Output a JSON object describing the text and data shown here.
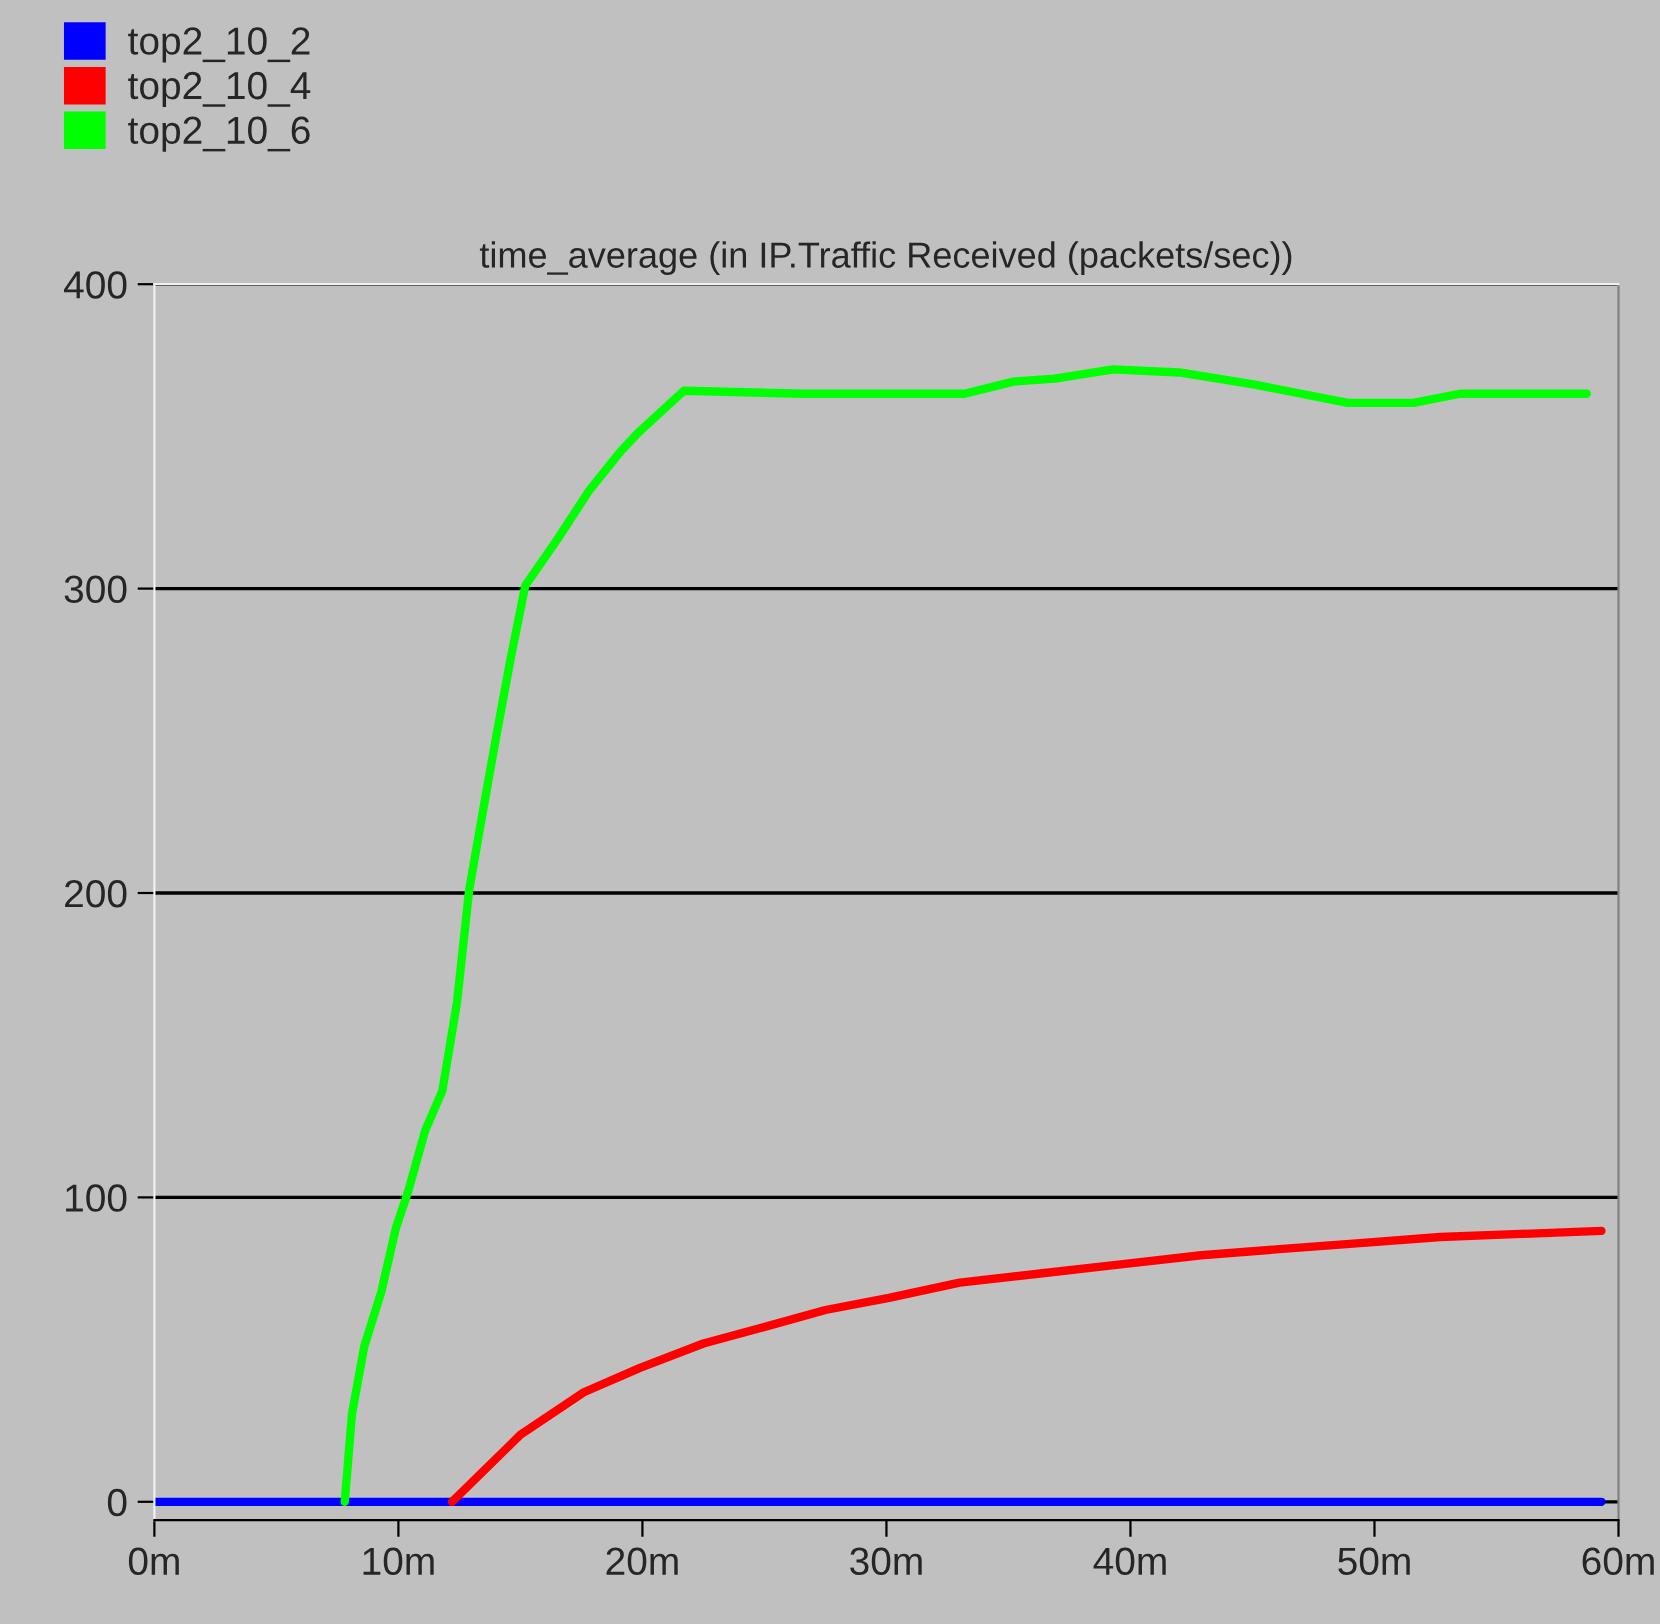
{
  "chart_data": {
    "type": "line",
    "title": "time_average (in IP.Traffic Received (packets/sec))",
    "xlim": [
      0,
      60
    ],
    "ylim": [
      -6,
      400
    ],
    "xticks": [
      {
        "value": 0,
        "label": "0m"
      },
      {
        "value": 10,
        "label": "10m"
      },
      {
        "value": 20,
        "label": "20m"
      },
      {
        "value": 30,
        "label": "30m"
      },
      {
        "value": 40,
        "label": "40m"
      },
      {
        "value": 50,
        "label": "50m"
      },
      {
        "value": 60,
        "label": "60m"
      }
    ],
    "yticks": [
      0,
      100,
      200,
      300,
      400
    ],
    "grid": "y",
    "legend": "top left",
    "marker": "none",
    "line_style": "solid",
    "series": [
      {
        "name": "top2_10_2",
        "color": "#0000ff",
        "x": [
          0,
          59.3
        ],
        "values": [
          0,
          0
        ]
      },
      {
        "name": "top2_10_4",
        "color": "#ff0000",
        "x": [
          12.2,
          15.0,
          17.6,
          19.9,
          22.5,
          24.8,
          27.5,
          30.1,
          33.0,
          36.3,
          39.6,
          42.9,
          46.1,
          49.4,
          52.7,
          56.0,
          59.3
        ],
        "values": [
          0,
          22,
          36,
          44,
          52,
          57,
          63,
          67,
          72,
          75,
          78,
          81,
          83,
          85,
          87,
          88,
          89
        ]
      },
      {
        "name": "top2_10_6",
        "color": "#00ff00",
        "x": [
          7.8,
          8.1,
          8.6,
          9.3,
          9.9,
          10.4,
          11.1,
          11.8,
          12.4,
          12.9,
          13.4,
          14.0,
          14.6,
          15.2,
          16.5,
          17.8,
          19.1,
          19.8,
          21.7,
          26.6,
          30.4,
          33.2,
          35.2,
          36.9,
          39.3,
          42.0,
          45.1,
          47.0,
          48.9,
          51.6,
          53.5,
          58.7
        ],
        "values": [
          0,
          29,
          51,
          69,
          90,
          102,
          122,
          135,
          164,
          201,
          224,
          251,
          277,
          301,
          316,
          332,
          345,
          351,
          365,
          364,
          364,
          364,
          368,
          369,
          372,
          371,
          367,
          364,
          361,
          361,
          364,
          364
        ]
      }
    ]
  }
}
